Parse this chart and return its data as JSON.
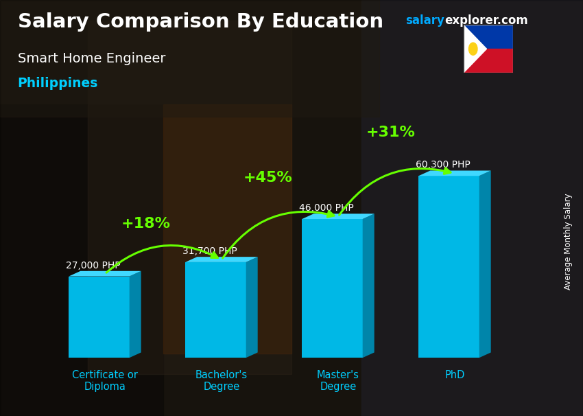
{
  "title": "Salary Comparison By Education",
  "subtitle": "Smart Home Engineer",
  "location": "Philippines",
  "ylabel": "Average Monthly Salary",
  "categories": [
    "Certificate or\nDiploma",
    "Bachelor's\nDegree",
    "Master's\nDegree",
    "PhD"
  ],
  "values": [
    27000,
    31700,
    46000,
    60300
  ],
  "value_labels": [
    "27,000 PHP",
    "31,700 PHP",
    "46,000 PHP",
    "60,300 PHP"
  ],
  "pct_labels": [
    "+18%",
    "+45%",
    "+31%"
  ],
  "bar_color_face": "#00b8e6",
  "bar_color_top": "#40d8ff",
  "bar_color_side": "#0085aa",
  "arrow_color": "#66ff00",
  "title_color": "#ffffff",
  "subtitle_color": "#ffffff",
  "location_color": "#00cfff",
  "watermark_salary_color": "#00aaff",
  "watermark_explorer_color": "#ffffff",
  "label_color": "#ffffff",
  "pct_color": "#66ff00",
  "xtick_color": "#00cfff",
  "ylabel_color": "#ffffff",
  "bg_dark": "#1c1c1c",
  "ylim": [
    0,
    80000
  ],
  "figsize": [
    8.5,
    6.06
  ],
  "dpi": 100
}
